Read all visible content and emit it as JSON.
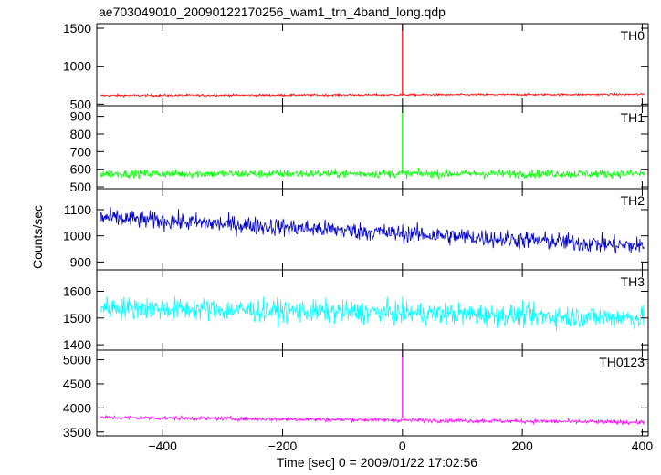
{
  "title": "ae703049010_20090122170256_wam1_trn_4band_long.qdp",
  "ylabel": "Counts/sec",
  "xlabel": "Time [sec] 0 = 2009/01/22 17:02:56",
  "chart_data": {
    "type": "line",
    "xlim": [
      -510,
      410
    ],
    "x_ticks": [
      -400,
      -200,
      0,
      200,
      400
    ],
    "x_tick_labels": [
      "−400",
      "−200",
      "0",
      "200",
      "400"
    ],
    "panels": [
      {
        "name": "TH0",
        "color": "#ff0000",
        "ylim": [
          480,
          1560
        ],
        "y_ticks": [
          500,
          1000,
          1500
        ],
        "y_tick_labels": [
          "500",
          "1000",
          "1500"
        ],
        "noise": {
          "trend_start": 615,
          "trend_end": 630,
          "amplitude": 18
        },
        "spike": {
          "x": 0,
          "peak": 1560
        }
      },
      {
        "name": "TH1",
        "color": "#00ff00",
        "ylim": [
          490,
          960
        ],
        "y_ticks": [
          500,
          600,
          700,
          800,
          900
        ],
        "y_tick_labels": [
          "500",
          "600",
          "700",
          "800",
          "900"
        ],
        "noise": {
          "trend_start": 575,
          "trend_end": 575,
          "amplitude": 30
        },
        "spike": {
          "x": 0,
          "peak": 960
        }
      },
      {
        "name": "TH2",
        "color": "#0000cc",
        "ylim": [
          870,
          1180
        ],
        "y_ticks": [
          900,
          1000,
          1100
        ],
        "y_tick_labels": [
          "900",
          "1000",
          "1100"
        ],
        "noise": {
          "trend_start": 1070,
          "trend_end": 960,
          "amplitude": 45
        },
        "spike": null
      },
      {
        "name": "TH3",
        "color": "#00ffff",
        "ylim": [
          1380,
          1680
        ],
        "y_ticks": [
          1400,
          1500,
          1600
        ],
        "y_tick_labels": [
          "1400",
          "1500",
          "1600"
        ],
        "noise": {
          "trend_start": 1540,
          "trend_end": 1500,
          "amplitude": 55
        },
        "spike": null
      },
      {
        "name": "TH0123",
        "color": "#ff00ff",
        "ylim": [
          3420,
          5200
        ],
        "y_ticks": [
          3500,
          4000,
          4500,
          5000
        ],
        "y_tick_labels": [
          "3500",
          "4000",
          "4500",
          "5000"
        ],
        "noise": {
          "trend_start": 3800,
          "trend_end": 3700,
          "amplitude": 55
        },
        "spike": {
          "x": 0,
          "peak": 5200
        }
      }
    ]
  }
}
